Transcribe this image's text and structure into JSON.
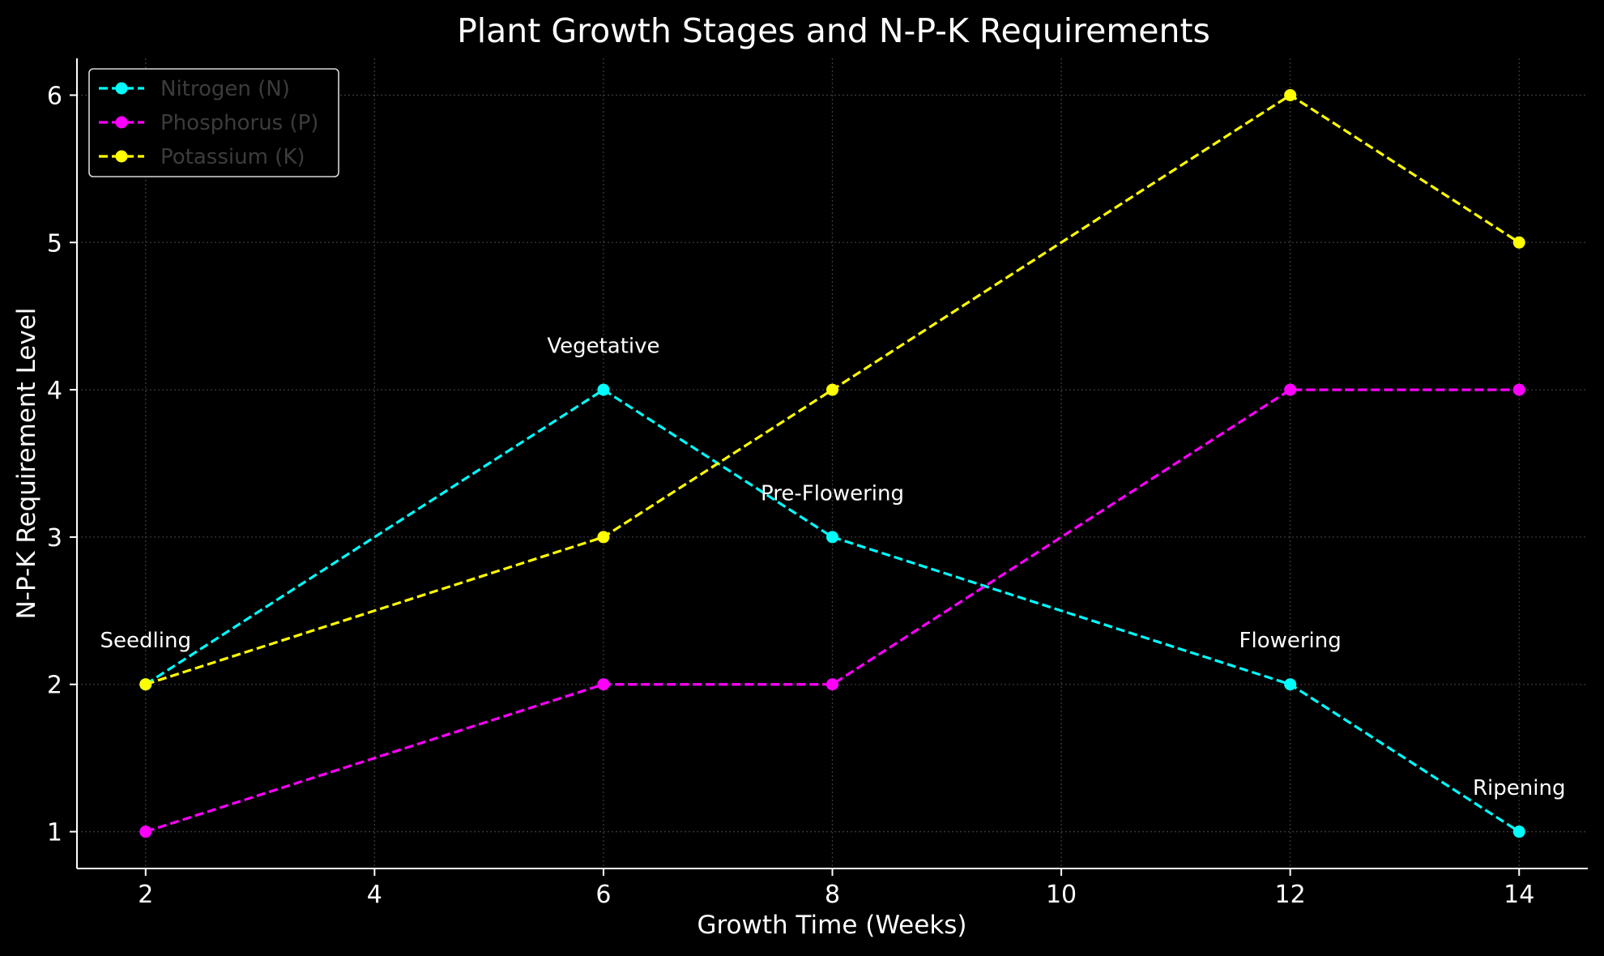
{
  "chart_data": {
    "type": "line",
    "title": "Plant Growth Stages and N-P-K Requirements",
    "xlabel": "Growth Time (Weeks)",
    "ylabel": "N-P-K Requirement Level",
    "x": [
      2,
      6,
      8,
      12,
      14
    ],
    "xlim": [
      1.4,
      14.6
    ],
    "ylim": [
      0.75,
      6.25
    ],
    "xticks": [
      2,
      4,
      6,
      8,
      10,
      12,
      14
    ],
    "yticks": [
      1,
      2,
      3,
      4,
      5,
      6
    ],
    "grid": true,
    "legend_position": "top-left",
    "series": [
      {
        "name": "Nitrogen (N)",
        "color": "#00ffff",
        "style": "dashed",
        "marker": "circle",
        "values": [
          2,
          4,
          3,
          2,
          1
        ]
      },
      {
        "name": "Phosphorus (P)",
        "color": "#ff00ff",
        "style": "dashed",
        "marker": "circle",
        "values": [
          1,
          2,
          2,
          4,
          4
        ]
      },
      {
        "name": "Potassium (K)",
        "color": "#ffff00",
        "style": "dashed",
        "marker": "circle",
        "values": [
          2,
          3,
          4,
          6,
          5
        ]
      }
    ],
    "annotations": [
      {
        "text": "Seedling",
        "x": 2,
        "y": 2.3
      },
      {
        "text": "Vegetative",
        "x": 6,
        "y": 4.3
      },
      {
        "text": "Pre-Flowering",
        "x": 8,
        "y": 3.3
      },
      {
        "text": "Flowering",
        "x": 12,
        "y": 2.3
      },
      {
        "text": "Ripening",
        "x": 14,
        "y": 1.3
      }
    ]
  }
}
